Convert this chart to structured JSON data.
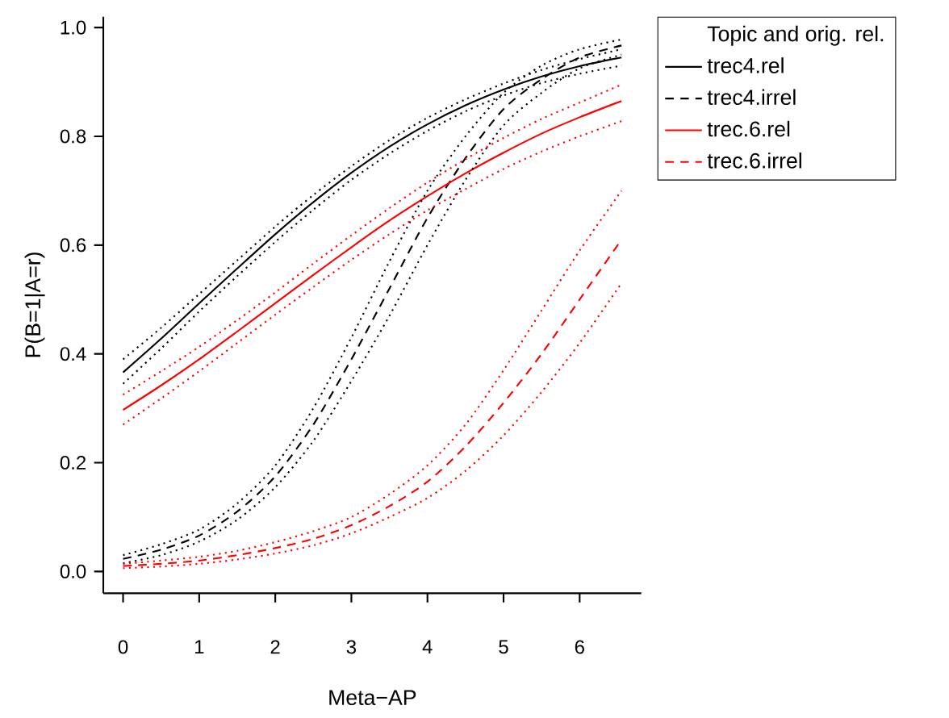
{
  "chart_data": {
    "type": "line",
    "xlabel": "Meta−AP",
    "ylabel": "P(B=1|A=r)",
    "legend_title": "Topic and orig. rel.",
    "legend": "right",
    "marker": "none",
    "x": [
      0,
      0.5,
      1,
      1.5,
      2,
      2.5,
      3,
      3.5,
      4,
      4.5,
      5,
      5.5,
      6,
      6.55
    ],
    "xlim": [
      -0.26,
      6.81
    ],
    "ylim": [
      -0.04,
      1.02
    ],
    "xticks": [
      0,
      1,
      2,
      3,
      4,
      5,
      6
    ],
    "yticks": [
      {
        "value": 0,
        "label": "0.0"
      },
      {
        "value": 0.2,
        "label": "0.2"
      },
      {
        "value": 0.4,
        "label": "0.4"
      },
      {
        "value": 0.6,
        "label": "0.6"
      },
      {
        "value": 0.8,
        "label": "0.8"
      },
      {
        "value": 1,
        "label": "1.0"
      }
    ],
    "series": [
      {
        "name": "trec4.rel",
        "color": "#000000",
        "line_style": "solid",
        "values": [
          0.366,
          0.428,
          0.493,
          0.557,
          0.62,
          0.679,
          0.733,
          0.781,
          0.822,
          0.857,
          0.886,
          0.91,
          0.929,
          0.945
        ]
      },
      {
        "name": "trec4.irrel",
        "color": "#000000",
        "line_style": "dashed",
        "values": [
          0.023,
          0.04,
          0.066,
          0.11,
          0.175,
          0.27,
          0.39,
          0.52,
          0.65,
          0.76,
          0.85,
          0.905,
          0.945,
          0.967
        ]
      },
      {
        "name": "trec.6.rel",
        "color": "#ff0000",
        "line_style": "solid",
        "values": [
          0.297,
          0.342,
          0.39,
          0.441,
          0.493,
          0.545,
          0.596,
          0.645,
          0.69,
          0.732,
          0.77,
          0.805,
          0.835,
          0.865
        ]
      },
      {
        "name": "trec.6.irrel",
        "color": "#ff0000",
        "line_style": "dashed",
        "values": [
          0.01,
          0.014,
          0.02,
          0.03,
          0.043,
          0.06,
          0.085,
          0.12,
          0.165,
          0.23,
          0.31,
          0.4,
          0.5,
          0.61
        ]
      },
      {
        "color": "#000000",
        "line_style": "dotted",
        "values": [
          0.345,
          0.41,
          0.478,
          0.543,
          0.606,
          0.665,
          0.72,
          0.768,
          0.81,
          0.846,
          0.875,
          0.898,
          0.915,
          0.93
        ]
      },
      {
        "color": "#000000",
        "line_style": "dotted",
        "values": [
          0.39,
          0.448,
          0.51,
          0.572,
          0.634,
          0.692,
          0.745,
          0.793,
          0.834,
          0.868,
          0.897,
          0.922,
          0.942,
          0.96
        ]
      },
      {
        "color": "#000000",
        "line_style": "dotted",
        "values": [
          0.015,
          0.03,
          0.055,
          0.095,
          0.155,
          0.24,
          0.35,
          0.47,
          0.6,
          0.72,
          0.82,
          0.88,
          0.925,
          0.95
        ]
      },
      {
        "color": "#000000",
        "line_style": "dotted",
        "values": [
          0.03,
          0.05,
          0.077,
          0.125,
          0.195,
          0.3,
          0.43,
          0.57,
          0.7,
          0.8,
          0.88,
          0.93,
          0.96,
          0.978
        ]
      },
      {
        "color": "#ff0000",
        "line_style": "dotted",
        "values": [
          0.27,
          0.318,
          0.368,
          0.42,
          0.472,
          0.523,
          0.573,
          0.62,
          0.664,
          0.703,
          0.74,
          0.772,
          0.8,
          0.828
        ]
      },
      {
        "color": "#ff0000",
        "line_style": "dotted",
        "values": [
          0.325,
          0.368,
          0.413,
          0.462,
          0.513,
          0.566,
          0.618,
          0.668,
          0.715,
          0.758,
          0.797,
          0.832,
          0.862,
          0.895
        ]
      },
      {
        "color": "#ff0000",
        "line_style": "dotted",
        "values": [
          0.006,
          0.009,
          0.014,
          0.022,
          0.033,
          0.048,
          0.07,
          0.1,
          0.135,
          0.185,
          0.25,
          0.33,
          0.42,
          0.53
        ]
      },
      {
        "color": "#ff0000",
        "line_style": "dotted",
        "values": [
          0.014,
          0.02,
          0.027,
          0.038,
          0.054,
          0.074,
          0.1,
          0.142,
          0.195,
          0.27,
          0.37,
          0.48,
          0.59,
          0.7
        ]
      }
    ]
  }
}
